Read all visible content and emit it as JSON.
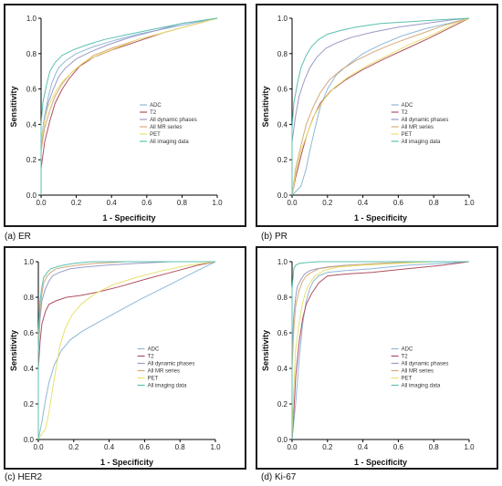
{
  "chart_data": [
    {
      "type": "line",
      "caption": "(a) ER",
      "xlabel": "1 - Specificity",
      "ylabel": "Sensitivity",
      "xlim": [
        0,
        1
      ],
      "ylim": [
        0,
        1
      ],
      "xticks": [
        "0.0",
        "0.2",
        "0.4",
        "0.6",
        "0.8",
        "1.0"
      ],
      "yticks": [
        "0.0",
        "0.2",
        "0.4",
        "0.6",
        "0.8",
        "1.0"
      ],
      "legend_placement": "center-right",
      "series": [
        {
          "name": "ADC",
          "color": "#8fb8d8",
          "x": [
            0,
            0.0,
            0.02,
            0.04,
            0.06,
            0.08,
            0.1,
            0.14,
            0.2,
            0.3,
            0.4,
            0.55,
            0.7,
            0.85,
            1.0
          ],
          "y": [
            0,
            0.3,
            0.45,
            0.55,
            0.63,
            0.68,
            0.72,
            0.76,
            0.8,
            0.84,
            0.87,
            0.91,
            0.94,
            0.97,
            1.0
          ]
        },
        {
          "name": "T2",
          "color": "#b05060",
          "x": [
            0,
            0.0,
            0.02,
            0.05,
            0.08,
            0.12,
            0.16,
            0.22,
            0.3,
            0.4,
            0.55,
            0.7,
            0.85,
            1.0
          ],
          "y": [
            0,
            0.15,
            0.3,
            0.42,
            0.52,
            0.6,
            0.66,
            0.73,
            0.78,
            0.82,
            0.87,
            0.92,
            0.96,
            1.0
          ]
        },
        {
          "name": "All dynamic phases",
          "color": "#9a9ac8",
          "x": [
            0,
            0.0,
            0.02,
            0.04,
            0.07,
            0.1,
            0.14,
            0.2,
            0.28,
            0.38,
            0.5,
            0.65,
            0.8,
            1.0
          ],
          "y": [
            0,
            0.28,
            0.42,
            0.52,
            0.6,
            0.67,
            0.72,
            0.77,
            0.81,
            0.85,
            0.89,
            0.93,
            0.97,
            1.0
          ]
        },
        {
          "name": "All MR series",
          "color": "#d4aa7a",
          "x": [
            0,
            0.0,
            0.02,
            0.05,
            0.08,
            0.12,
            0.17,
            0.23,
            0.3,
            0.4,
            0.55,
            0.7,
            0.85,
            1.0
          ],
          "y": [
            0,
            0.25,
            0.38,
            0.48,
            0.56,
            0.63,
            0.69,
            0.74,
            0.79,
            0.83,
            0.88,
            0.92,
            0.96,
            1.0
          ]
        },
        {
          "name": "PET",
          "color": "#e8e070",
          "x": [
            0,
            0.0,
            0.02,
            0.04,
            0.08,
            0.12,
            0.18,
            0.24,
            0.32,
            0.42,
            0.55,
            0.7,
            0.85,
            1.0
          ],
          "y": [
            0,
            0.3,
            0.42,
            0.5,
            0.58,
            0.64,
            0.7,
            0.75,
            0.79,
            0.83,
            0.88,
            0.92,
            0.96,
            1.0
          ]
        },
        {
          "name": "All imaging data",
          "color": "#5cc0b0",
          "x": [
            0,
            0.0,
            0.01,
            0.03,
            0.05,
            0.08,
            0.12,
            0.18,
            0.26,
            0.36,
            0.5,
            0.65,
            0.8,
            1.0
          ],
          "y": [
            0,
            0.4,
            0.52,
            0.62,
            0.7,
            0.75,
            0.79,
            0.82,
            0.85,
            0.88,
            0.91,
            0.94,
            0.97,
            1.0
          ]
        }
      ]
    },
    {
      "type": "line",
      "caption": "(b) PR",
      "xlabel": "1 - Specificity",
      "ylabel": "Sensitivity",
      "xlim": [
        0,
        1
      ],
      "ylim": [
        0,
        1
      ],
      "xticks": [
        "0.0",
        "0.2",
        "0.4",
        "0.6",
        "0.8",
        "1.0"
      ],
      "yticks": [
        "0.0",
        "0.2",
        "0.4",
        "0.6",
        "0.8",
        "1.0"
      ],
      "legend_placement": "center-right",
      "series": [
        {
          "name": "ADC",
          "color": "#8fb8d8",
          "x": [
            0,
            0.05,
            0.08,
            0.1,
            0.13,
            0.16,
            0.2,
            0.25,
            0.32,
            0.4,
            0.5,
            0.62,
            0.75,
            0.88,
            1.0
          ],
          "y": [
            0,
            0.05,
            0.15,
            0.25,
            0.38,
            0.5,
            0.6,
            0.68,
            0.74,
            0.8,
            0.85,
            0.9,
            0.94,
            0.97,
            1.0
          ]
        },
        {
          "name": "T2",
          "color": "#b05060",
          "x": [
            0,
            0.02,
            0.05,
            0.08,
            0.12,
            0.16,
            0.22,
            0.3,
            0.4,
            0.52,
            0.65,
            0.78,
            0.9,
            1.0
          ],
          "y": [
            0,
            0.1,
            0.22,
            0.33,
            0.44,
            0.52,
            0.59,
            0.65,
            0.71,
            0.77,
            0.83,
            0.89,
            0.95,
            1.0
          ]
        },
        {
          "name": "All dynamic phases",
          "color": "#9a9ac8",
          "x": [
            0,
            0.0,
            0.02,
            0.04,
            0.07,
            0.1,
            0.14,
            0.19,
            0.25,
            0.33,
            0.45,
            0.6,
            0.75,
            0.9,
            1.0
          ],
          "y": [
            0,
            0.3,
            0.45,
            0.56,
            0.65,
            0.72,
            0.78,
            0.83,
            0.86,
            0.89,
            0.92,
            0.95,
            0.97,
            0.99,
            1.0
          ]
        },
        {
          "name": "All MR series",
          "color": "#d4aa7a",
          "x": [
            0,
            0.02,
            0.05,
            0.08,
            0.12,
            0.16,
            0.21,
            0.28,
            0.36,
            0.46,
            0.58,
            0.72,
            0.86,
            1.0
          ],
          "y": [
            0,
            0.15,
            0.28,
            0.4,
            0.5,
            0.58,
            0.65,
            0.71,
            0.76,
            0.81,
            0.86,
            0.91,
            0.96,
            1.0
          ]
        },
        {
          "name": "PET",
          "color": "#e8e070",
          "x": [
            0,
            0.02,
            0.05,
            0.09,
            0.13,
            0.18,
            0.24,
            0.32,
            0.42,
            0.54,
            0.66,
            0.8,
            0.92,
            1.0
          ],
          "y": [
            0,
            0.12,
            0.25,
            0.36,
            0.46,
            0.54,
            0.61,
            0.67,
            0.73,
            0.79,
            0.85,
            0.91,
            0.97,
            1.0
          ]
        },
        {
          "name": "All imaging data",
          "color": "#5cc0b0",
          "x": [
            0,
            0.0,
            0.01,
            0.03,
            0.05,
            0.08,
            0.11,
            0.15,
            0.2,
            0.27,
            0.36,
            0.5,
            0.66,
            0.82,
            1.0
          ],
          "y": [
            0,
            0.38,
            0.52,
            0.63,
            0.72,
            0.79,
            0.84,
            0.88,
            0.91,
            0.93,
            0.95,
            0.97,
            0.98,
            0.99,
            1.0
          ]
        }
      ]
    },
    {
      "type": "line",
      "caption": "(c) HER2",
      "xlabel": "1 - Specificity",
      "ylabel": "Sensitivity",
      "xlim": [
        0,
        1
      ],
      "ylim": [
        0,
        1
      ],
      "xticks": [
        "0.0",
        "0.2",
        "0.4",
        "0.6",
        "0.8",
        "1.0"
      ],
      "yticks": [
        "0.0",
        "0.2",
        "0.4",
        "0.6",
        "0.8",
        "1.0"
      ],
      "legend_placement": "center-right",
      "series": [
        {
          "name": "ADC",
          "color": "#8fb8d8",
          "x": [
            0,
            0.02,
            0.04,
            0.06,
            0.09,
            0.13,
            0.18,
            0.25,
            0.34,
            0.45,
            0.58,
            0.72,
            0.86,
            1.0
          ],
          "y": [
            0,
            0.1,
            0.22,
            0.32,
            0.42,
            0.5,
            0.56,
            0.61,
            0.66,
            0.72,
            0.79,
            0.86,
            0.93,
            1.0
          ]
        },
        {
          "name": "T2",
          "color": "#b05060",
          "x": [
            0,
            0.0,
            0.01,
            0.02,
            0.04,
            0.06,
            0.1,
            0.16,
            0.24,
            0.34,
            0.46,
            0.6,
            0.75,
            0.9,
            1.0
          ],
          "y": [
            0,
            0.4,
            0.55,
            0.65,
            0.72,
            0.76,
            0.78,
            0.8,
            0.81,
            0.83,
            0.86,
            0.9,
            0.94,
            0.98,
            1.0
          ]
        },
        {
          "name": "All dynamic phases",
          "color": "#9a9ac8",
          "x": [
            0,
            0.0,
            0.01,
            0.02,
            0.04,
            0.06,
            0.08,
            0.12,
            0.18,
            0.26,
            0.38,
            0.55,
            0.75,
            1.0
          ],
          "y": [
            0,
            0.5,
            0.68,
            0.78,
            0.85,
            0.89,
            0.92,
            0.94,
            0.96,
            0.97,
            0.98,
            0.99,
            1.0,
            1.0
          ]
        },
        {
          "name": "All MR series",
          "color": "#d4aa7a",
          "x": [
            0,
            0.0,
            0.01,
            0.02,
            0.03,
            0.05,
            0.07,
            0.1,
            0.15,
            0.22,
            0.32,
            0.5,
            0.7,
            1.0
          ],
          "y": [
            0,
            0.55,
            0.72,
            0.82,
            0.88,
            0.92,
            0.94,
            0.96,
            0.97,
            0.98,
            0.99,
            1.0,
            1.0,
            1.0
          ]
        },
        {
          "name": "PET",
          "color": "#e8e070",
          "x": [
            0,
            0.04,
            0.06,
            0.08,
            0.1,
            0.12,
            0.15,
            0.19,
            0.24,
            0.32,
            0.42,
            0.55,
            0.7,
            0.85,
            1.0
          ],
          "y": [
            0,
            0.06,
            0.15,
            0.28,
            0.4,
            0.52,
            0.62,
            0.7,
            0.76,
            0.82,
            0.87,
            0.91,
            0.95,
            0.98,
            1.0
          ]
        },
        {
          "name": "All imaging data",
          "color": "#5cc0b0",
          "x": [
            0,
            0.0,
            0.01,
            0.02,
            0.03,
            0.05,
            0.07,
            0.1,
            0.14,
            0.2,
            0.3,
            0.45,
            0.65,
            1.0
          ],
          "y": [
            0,
            0.6,
            0.78,
            0.86,
            0.91,
            0.94,
            0.96,
            0.97,
            0.98,
            0.99,
            1.0,
            1.0,
            1.0,
            1.0
          ]
        }
      ]
    },
    {
      "type": "line",
      "caption": "(d) Ki-67",
      "xlabel": "1 - Specificity",
      "ylabel": "Sensitivity",
      "xlim": [
        0,
        1
      ],
      "ylim": [
        0,
        1
      ],
      "xticks": [
        "0.0",
        "0.2",
        "0.4",
        "0.6",
        "0.8",
        "1.0"
      ],
      "yticks": [
        "0.0",
        "0.2",
        "0.4",
        "0.6",
        "0.8",
        "1.0"
      ],
      "legend_placement": "center-right",
      "series": [
        {
          "name": "ADC",
          "color": "#8fb8d8",
          "x": [
            0,
            0.02,
            0.04,
            0.06,
            0.08,
            0.1,
            0.12,
            0.15,
            0.2,
            0.3,
            0.45,
            0.65,
            0.85,
            1.0
          ],
          "y": [
            0,
            0.2,
            0.45,
            0.65,
            0.78,
            0.85,
            0.89,
            0.92,
            0.94,
            0.95,
            0.96,
            0.98,
            0.99,
            1.0
          ]
        },
        {
          "name": "T2",
          "color": "#b05060",
          "x": [
            0,
            0.01,
            0.02,
            0.04,
            0.06,
            0.08,
            0.11,
            0.15,
            0.2,
            0.3,
            0.45,
            0.65,
            0.85,
            1.0
          ],
          "y": [
            0,
            0.15,
            0.35,
            0.55,
            0.68,
            0.76,
            0.82,
            0.88,
            0.92,
            0.93,
            0.94,
            0.96,
            0.98,
            1.0
          ]
        },
        {
          "name": "All dynamic phases",
          "color": "#9a9ac8",
          "x": [
            0,
            0.0,
            0.01,
            0.02,
            0.03,
            0.05,
            0.07,
            0.1,
            0.14,
            0.2,
            0.3,
            0.5,
            0.75,
            1.0
          ],
          "y": [
            0,
            0.5,
            0.7,
            0.8,
            0.86,
            0.9,
            0.93,
            0.95,
            0.96,
            0.97,
            0.98,
            0.99,
            1.0,
            1.0
          ]
        },
        {
          "name": "All MR series",
          "color": "#d4aa7a",
          "x": [
            0,
            0.0,
            0.01,
            0.02,
            0.04,
            0.06,
            0.08,
            0.11,
            0.15,
            0.22,
            0.32,
            0.5,
            0.75,
            1.0
          ],
          "y": [
            0,
            0.4,
            0.62,
            0.75,
            0.84,
            0.89,
            0.92,
            0.94,
            0.96,
            0.97,
            0.98,
            0.99,
            1.0,
            1.0
          ]
        },
        {
          "name": "PET",
          "color": "#e8e070",
          "x": [
            0,
            0.01,
            0.02,
            0.04,
            0.06,
            0.08,
            0.1,
            0.13,
            0.18,
            0.26,
            0.4,
            0.6,
            0.8,
            1.0
          ],
          "y": [
            0,
            0.3,
            0.5,
            0.66,
            0.77,
            0.84,
            0.88,
            0.92,
            0.95,
            0.97,
            0.98,
            0.99,
            1.0,
            1.0
          ]
        },
        {
          "name": "All imaging data",
          "color": "#5cc0b0",
          "x": [
            0,
            0.0,
            0.01,
            0.02,
            0.04,
            0.08,
            0.15,
            0.3,
            0.5,
            0.75,
            1.0
          ],
          "y": [
            0,
            0.85,
            0.96,
            0.98,
            0.99,
            0.995,
            1.0,
            1.0,
            1.0,
            1.0,
            1.0
          ]
        }
      ]
    }
  ]
}
